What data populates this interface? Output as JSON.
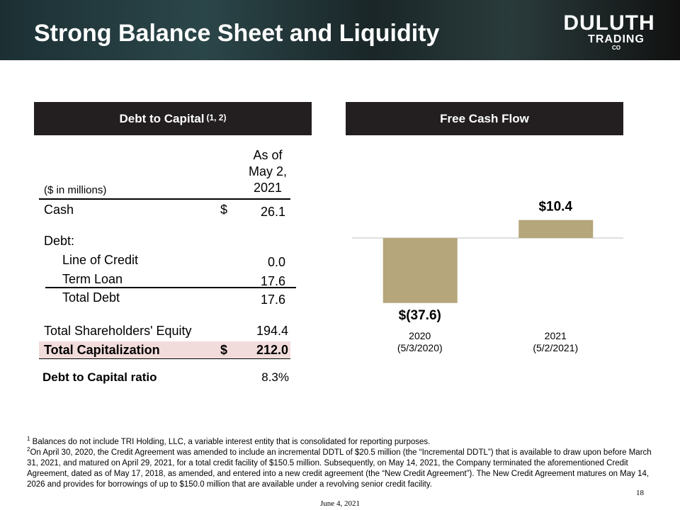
{
  "title": "Strong Balance Sheet and Liquidity",
  "logo": {
    "line1": "DULUTH",
    "line2": "TRADING",
    "line3": "CO"
  },
  "table": {
    "heading": "Debt to Capital",
    "heading_note": "(1, 2)",
    "unit_label": "($ in millions)",
    "column_header": "As of\nMay 2,\n2021",
    "rows": [
      [
        "Cash",
        "$",
        "26.1"
      ],
      [
        "Debt:"
      ],
      [
        "Line of Credit",
        "0.0"
      ],
      [
        "Term Loan",
        "17.6"
      ],
      [
        "Total Debt",
        "17.6"
      ],
      [
        "Total Shareholders' Equity",
        "194.4"
      ],
      [
        "Total Capitalization",
        "$",
        "212.0"
      ],
      [
        "Debt to Capital ratio",
        "8.3%"
      ]
    ]
  },
  "chart_data": {
    "type": "bar",
    "title": "Free Cash Flow",
    "categories": [
      "2020\n(5/3/2020)",
      "2021\n(5/2/2021)"
    ],
    "values": [
      -37.6,
      10.4
    ],
    "value_labels": [
      "$(37.6)",
      "$10.4"
    ],
    "color": "#b5a67b"
  },
  "footnotes": [
    {
      "marker": "1",
      "text": "Balances do not include TRI Holding, LLC, a variable interest entity that is consolidated for reporting purposes."
    },
    {
      "marker": "2",
      "text": "On April 30, 2020, the Credit Agreement was amended to include an incremental DDTL of $20.5 million (the “Incremental DDTL”) that is available to draw upon before March 31, 2021, and matured on April 29, 2021, for a total credit facility of $150.5 million.  Subsequently, on May 14, 2021, the Company terminated the aforementioned Credit Agreement, dated as of May 17, 2018, as amended, and entered into a new credit agreement (the “New Credit Agreement”).  The New Credit Agreement matures on May 14, 2026 and provides for borrowings of up to $150.0 million that are available under a revolving senior credit facility."
    }
  ],
  "page_number": "18",
  "date": "June 4, 2021"
}
